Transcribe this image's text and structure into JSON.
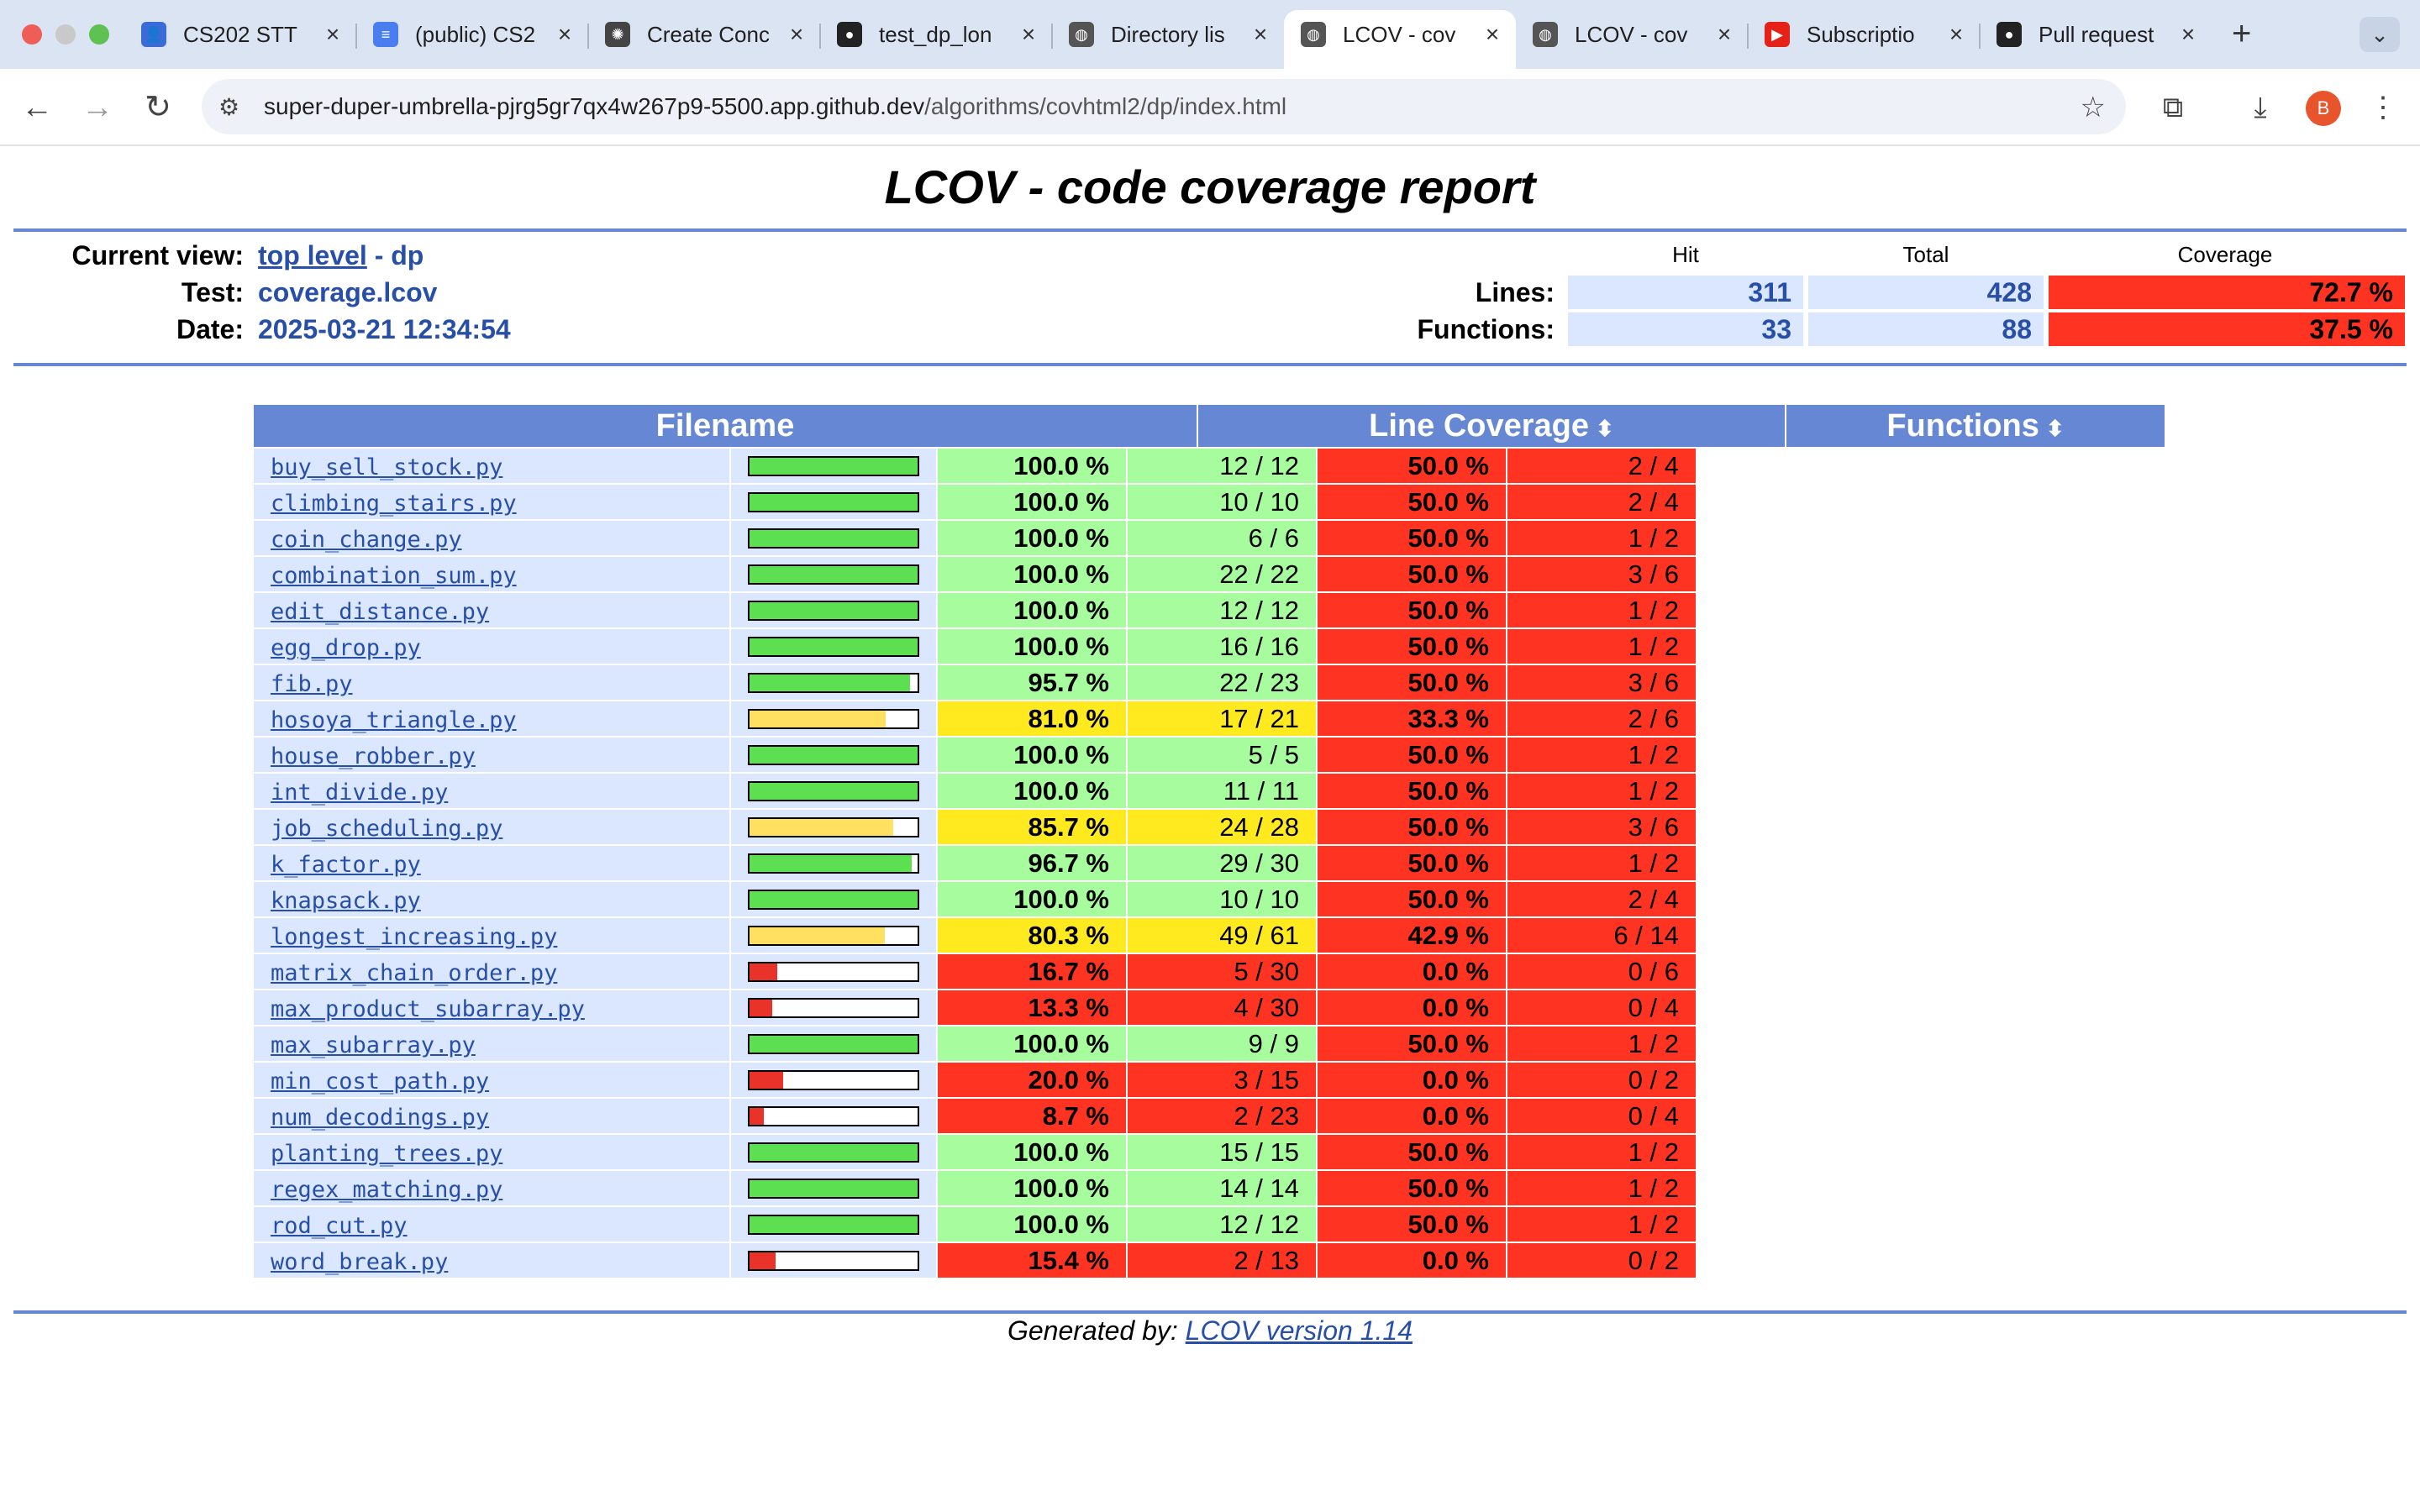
{
  "browser": {
    "tabs": [
      {
        "title": "CS202 STT",
        "icon": "contacts-icon",
        "icon_color": "#3b6bd6",
        "active": false
      },
      {
        "title": "(public) CS2",
        "icon": "docs-icon",
        "icon_color": "#4a7ef0",
        "active": false
      },
      {
        "title": "Create Conc",
        "icon": "openai-icon",
        "icon_color": "#444444",
        "active": false
      },
      {
        "title": "test_dp_lon",
        "icon": "github-icon",
        "icon_color": "#222222",
        "active": false
      },
      {
        "title": "Directory lis",
        "icon": "globe-icon",
        "icon_color": "#555555",
        "active": false
      },
      {
        "title": "LCOV - cov",
        "icon": "globe-icon",
        "icon_color": "#555555",
        "active": true
      },
      {
        "title": "LCOV - cov",
        "icon": "globe-icon",
        "icon_color": "#555555",
        "active": false
      },
      {
        "title": "Subscriptio",
        "icon": "youtube-icon",
        "icon_color": "#e62117",
        "active": false
      },
      {
        "title": "Pull request",
        "icon": "github-icon",
        "icon_color": "#222222",
        "active": false
      }
    ],
    "url_host": "super-duper-umbrella-pjrg5gr7qx4w267p9-5500.app.github.dev",
    "url_path": "/algorithms/covhtml2/dp/index.html",
    "profile_initial": "B"
  },
  "header": {
    "title": "LCOV - code coverage report",
    "current_view_label": "Current view:",
    "current_view_link": "top level",
    "current_view_rest": " - dp",
    "test_label": "Test:",
    "test_value": "coverage.lcov",
    "date_label": "Date:",
    "date_value": "2025-03-21 12:34:54",
    "col_hit": "Hit",
    "col_total": "Total",
    "col_coverage": "Coverage",
    "lines_label": "Lines:",
    "lines_hit": "311",
    "lines_total": "428",
    "lines_coverage": "72.7 %",
    "functions_label": "Functions:",
    "functions_hit": "33",
    "functions_total": "88",
    "functions_coverage": "37.5 %"
  },
  "table": {
    "col_filename": "Filename",
    "col_line_coverage": "Line Coverage",
    "col_functions": "Functions",
    "colors": {
      "hi": "#a7fc9d",
      "med": "#ffea20",
      "lo": "#ff3322",
      "bar_hi": "#5ce052",
      "bar_med": "#ffe060",
      "bar_lo": "#e8322a"
    },
    "rows": [
      {
        "file": "buy_sell_stock.py",
        "pct": "100.0 %",
        "ratio": "12 / 12",
        "fpct": "50.0 %",
        "fratio": "2 / 4",
        "level": "hi",
        "fill": 1.0
      },
      {
        "file": "climbing_stairs.py",
        "pct": "100.0 %",
        "ratio": "10 / 10",
        "fpct": "50.0 %",
        "fratio": "2 / 4",
        "level": "hi",
        "fill": 1.0
      },
      {
        "file": "coin_change.py",
        "pct": "100.0 %",
        "ratio": "6 / 6",
        "fpct": "50.0 %",
        "fratio": "1 / 2",
        "level": "hi",
        "fill": 1.0
      },
      {
        "file": "combination_sum.py",
        "pct": "100.0 %",
        "ratio": "22 / 22",
        "fpct": "50.0 %",
        "fratio": "3 / 6",
        "level": "hi",
        "fill": 1.0
      },
      {
        "file": "edit_distance.py",
        "pct": "100.0 %",
        "ratio": "12 / 12",
        "fpct": "50.0 %",
        "fratio": "1 / 2",
        "level": "hi",
        "fill": 1.0
      },
      {
        "file": "egg_drop.py",
        "pct": "100.0 %",
        "ratio": "16 / 16",
        "fpct": "50.0 %",
        "fratio": "1 / 2",
        "level": "hi",
        "fill": 1.0
      },
      {
        "file": "fib.py",
        "pct": "95.7 %",
        "ratio": "22 / 23",
        "fpct": "50.0 %",
        "fratio": "3 / 6",
        "level": "hi",
        "fill": 0.957
      },
      {
        "file": "hosoya_triangle.py",
        "pct": "81.0 %",
        "ratio": "17 / 21",
        "fpct": "33.3 %",
        "fratio": "2 / 6",
        "level": "med",
        "fill": 0.81
      },
      {
        "file": "house_robber.py",
        "pct": "100.0 %",
        "ratio": "5 / 5",
        "fpct": "50.0 %",
        "fratio": "1 / 2",
        "level": "hi",
        "fill": 1.0
      },
      {
        "file": "int_divide.py",
        "pct": "100.0 %",
        "ratio": "11 / 11",
        "fpct": "50.0 %",
        "fratio": "1 / 2",
        "level": "hi",
        "fill": 1.0
      },
      {
        "file": "job_scheduling.py",
        "pct": "85.7 %",
        "ratio": "24 / 28",
        "fpct": "50.0 %",
        "fratio": "3 / 6",
        "level": "med",
        "fill": 0.857
      },
      {
        "file": "k_factor.py",
        "pct": "96.7 %",
        "ratio": "29 / 30",
        "fpct": "50.0 %",
        "fratio": "1 / 2",
        "level": "hi",
        "fill": 0.967
      },
      {
        "file": "knapsack.py",
        "pct": "100.0 %",
        "ratio": "10 / 10",
        "fpct": "50.0 %",
        "fratio": "2 / 4",
        "level": "hi",
        "fill": 1.0
      },
      {
        "file": "longest_increasing.py",
        "pct": "80.3 %",
        "ratio": "49 / 61",
        "fpct": "42.9 %",
        "fratio": "6 / 14",
        "level": "med",
        "fill": 0.803
      },
      {
        "file": "matrix_chain_order.py",
        "pct": "16.7 %",
        "ratio": "5 / 30",
        "fpct": "0.0 %",
        "fratio": "0 / 6",
        "level": "lo",
        "fill": 0.167
      },
      {
        "file": "max_product_subarray.py",
        "pct": "13.3 %",
        "ratio": "4 / 30",
        "fpct": "0.0 %",
        "fratio": "0 / 4",
        "level": "lo",
        "fill": 0.133
      },
      {
        "file": "max_subarray.py",
        "pct": "100.0 %",
        "ratio": "9 / 9",
        "fpct": "50.0 %",
        "fratio": "1 / 2",
        "level": "hi",
        "fill": 1.0
      },
      {
        "file": "min_cost_path.py",
        "pct": "20.0 %",
        "ratio": "3 / 15",
        "fpct": "0.0 %",
        "fratio": "0 / 2",
        "level": "lo",
        "fill": 0.2
      },
      {
        "file": "num_decodings.py",
        "pct": "8.7 %",
        "ratio": "2 / 23",
        "fpct": "0.0 %",
        "fratio": "0 / 4",
        "level": "lo",
        "fill": 0.087
      },
      {
        "file": "planting_trees.py",
        "pct": "100.0 %",
        "ratio": "15 / 15",
        "fpct": "50.0 %",
        "fratio": "1 / 2",
        "level": "hi",
        "fill": 1.0
      },
      {
        "file": "regex_matching.py",
        "pct": "100.0 %",
        "ratio": "14 / 14",
        "fpct": "50.0 %",
        "fratio": "1 / 2",
        "level": "hi",
        "fill": 1.0
      },
      {
        "file": "rod_cut.py",
        "pct": "100.0 %",
        "ratio": "12 / 12",
        "fpct": "50.0 %",
        "fratio": "1 / 2",
        "level": "hi",
        "fill": 1.0
      },
      {
        "file": "word_break.py",
        "pct": "15.4 %",
        "ratio": "2 / 13",
        "fpct": "0.0 %",
        "fratio": "0 / 2",
        "level": "lo",
        "fill": 0.154
      }
    ]
  },
  "footer": {
    "prefix": "Generated by: ",
    "link": "LCOV version 1.14"
  }
}
